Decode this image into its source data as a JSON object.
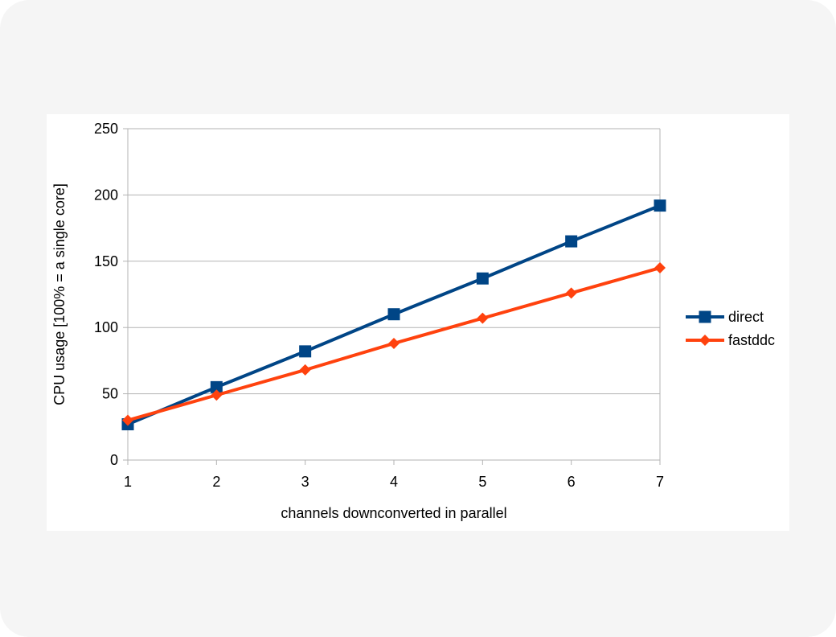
{
  "chart_data": {
    "type": "line",
    "title": "",
    "xlabel": "channels downconverted in parallel",
    "ylabel": "CPU usage [100% = a single core]",
    "x": [
      1,
      2,
      3,
      4,
      5,
      6,
      7
    ],
    "xlim": [
      1,
      7
    ],
    "ylim": [
      0,
      250
    ],
    "y_ticks": [
      0,
      50,
      100,
      150,
      200,
      250
    ],
    "grid": "horizontal",
    "legend_position": "right",
    "series": [
      {
        "name": "direct",
        "color": "#004586",
        "marker": "square",
        "values": [
          27,
          55,
          82,
          110,
          137,
          165,
          192
        ]
      },
      {
        "name": "fastddc",
        "color": "#ff420e",
        "marker": "diamond",
        "values": [
          30,
          49,
          68,
          88,
          107,
          126,
          145
        ]
      }
    ]
  }
}
